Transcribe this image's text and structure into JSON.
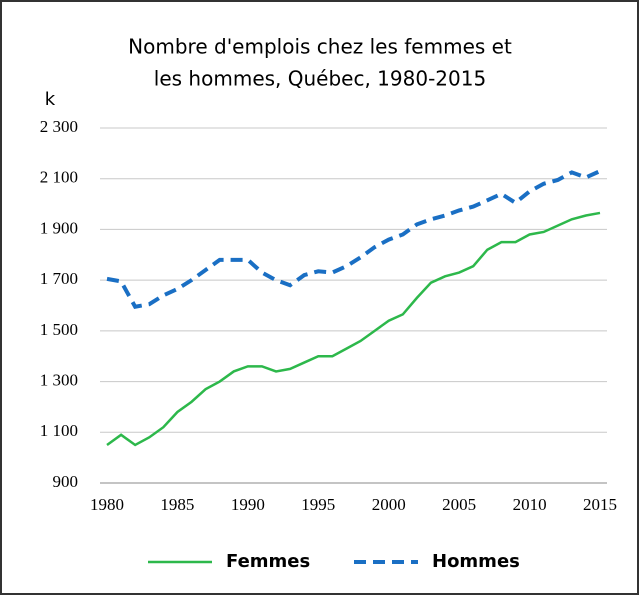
{
  "chart_data": {
    "type": "line",
    "title": [
      "Nombre d'emplois chez les femmes et",
      "les hommes, Québec, 1980-2015"
    ],
    "ylabel": "k",
    "x": [
      1980,
      1981,
      1982,
      1983,
      1984,
      1985,
      1986,
      1987,
      1988,
      1989,
      1990,
      1991,
      1992,
      1993,
      1994,
      1995,
      1996,
      1997,
      1998,
      1999,
      2000,
      2001,
      2002,
      2003,
      2004,
      2005,
      2006,
      2007,
      2008,
      2009,
      2010,
      2011,
      2012,
      2013,
      2014,
      2015
    ],
    "series": [
      {
        "name": "Femmes",
        "color": "#2db84b",
        "dash": false,
        "values": [
          1050,
          1090,
          1050,
          1080,
          1120,
          1180,
          1220,
          1270,
          1300,
          1340,
          1360,
          1360,
          1340,
          1350,
          1375,
          1400,
          1400,
          1430,
          1460,
          1500,
          1540,
          1565,
          1630,
          1690,
          1715,
          1730,
          1755,
          1820,
          1850,
          1850,
          1880,
          1890,
          1915,
          1940,
          1955,
          1965
        ]
      },
      {
        "name": "Hommes",
        "color": "#1a6fc4",
        "dash": true,
        "values": [
          1705,
          1695,
          1595,
          1605,
          1640,
          1665,
          1700,
          1740,
          1780,
          1780,
          1780,
          1730,
          1700,
          1680,
          1720,
          1735,
          1730,
          1755,
          1790,
          1830,
          1860,
          1880,
          1920,
          1940,
          1955,
          1975,
          1990,
          2015,
          2040,
          2005,
          2050,
          2080,
          2095,
          2125,
          2105,
          2130
        ]
      }
    ],
    "xlim": [
      1980,
      2015
    ],
    "xticks": [
      1980,
      1985,
      1990,
      1995,
      2000,
      2005,
      2010,
      2015
    ],
    "ylim": [
      900,
      2300
    ],
    "yticks": [
      900,
      {
        "value": 1100,
        "label": "1 100"
      },
      {
        "value": 1300,
        "label": "1 300"
      },
      {
        "value": 1500,
        "label": "1 500"
      },
      {
        "value": 1700,
        "label": "1 700"
      },
      {
        "value": 1900,
        "label": "1 900"
      },
      {
        "value": 2100,
        "label": "2 100"
      },
      {
        "value": 2300,
        "label": "2 300"
      }
    ],
    "grid": true,
    "legend": "bottom"
  }
}
